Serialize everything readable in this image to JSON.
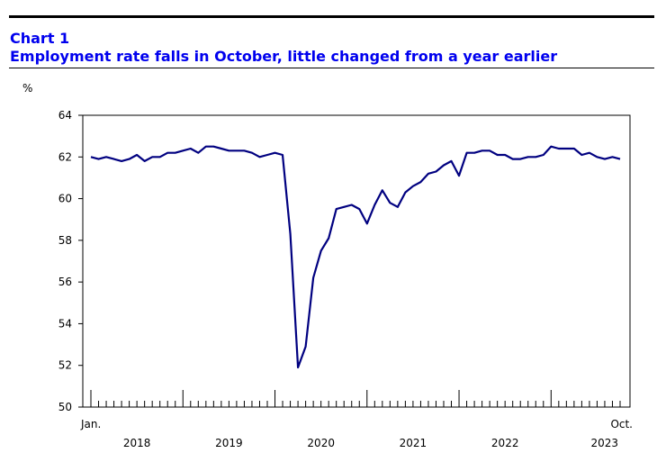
{
  "header": {
    "chart_number": "Chart 1",
    "title": "Employment rate falls in October, little changed from a year earlier"
  },
  "colors": {
    "title": "#0000ee",
    "series": "#000080",
    "axis": "#000000"
  },
  "chart_data": {
    "type": "line",
    "title": "Employment rate falls in October, little changed from a year earlier",
    "ylabel": "%",
    "xlabel": "",
    "ylim": [
      50,
      64
    ],
    "yticks": [
      50,
      52,
      54,
      56,
      58,
      60,
      62,
      64
    ],
    "grid": false,
    "legend": "none",
    "x_start": "Jan. 2018",
    "x_end": "Oct. 2023",
    "x_edge_labels": [
      "Jan.",
      "Oct."
    ],
    "years": [
      "2018",
      "2019",
      "2020",
      "2021",
      "2022",
      "2023"
    ],
    "series": [
      {
        "values": [
          62.0,
          61.9,
          62.0,
          61.9,
          61.8,
          61.9,
          62.1,
          61.8,
          62.0,
          62.0,
          62.2,
          62.2,
          62.3,
          62.4,
          62.2,
          62.5,
          62.5,
          62.4,
          62.3,
          62.3,
          62.3,
          62.2,
          62.0,
          62.1,
          62.2,
          62.1,
          58.3,
          51.9,
          52.9,
          56.2,
          57.5,
          58.1,
          59.5,
          59.6,
          59.7,
          59.5,
          58.8,
          59.7,
          60.4,
          59.8,
          59.6,
          60.3,
          60.6,
          60.8,
          61.2,
          61.3,
          61.6,
          61.8,
          61.1,
          62.2,
          62.2,
          62.3,
          62.3,
          62.1,
          62.1,
          61.9,
          61.9,
          62.0,
          62.0,
          62.1,
          62.5,
          62.4,
          62.4,
          62.4,
          62.1,
          62.2,
          62.0,
          61.9,
          62.0,
          61.9
        ]
      }
    ]
  }
}
